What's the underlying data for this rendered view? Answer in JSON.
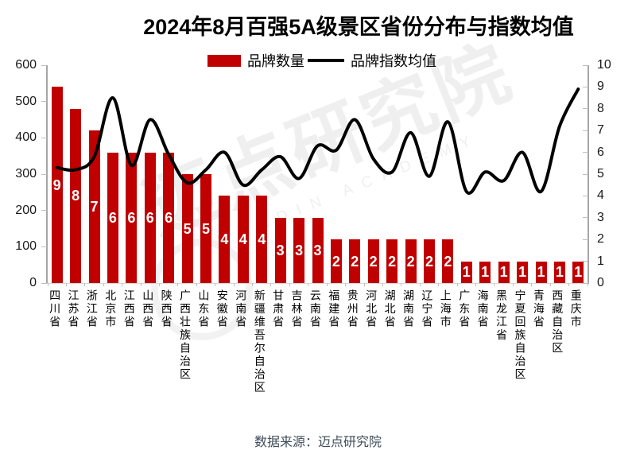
{
  "title": "2024年8月百强5A级景区省份分布与指数均值",
  "legend": {
    "bar_label": "品牌数量",
    "line_label": "品牌指数均值"
  },
  "source": "数据来源：迈点研究院",
  "watermark": {
    "text": "迈点研究院",
    "subtext": "MEADIN ACADEMY"
  },
  "colors": {
    "bar": "#C00000",
    "line": "#000000",
    "axis": "#A6A6A6",
    "tick": "#BFBFBF",
    "title_text": "#000000",
    "source_text": "#3E4C59"
  },
  "chart_data": {
    "type": "bar",
    "title": "2024年8月百强5A级景区省份分布与指数均值",
    "categories": [
      "四川省",
      "江苏省",
      "浙江省",
      "北京市",
      "江西省",
      "山西省",
      "陕西省",
      "广西壮族自治区",
      "山东省",
      "安徽省",
      "河南省",
      "新疆维吾尔自治区",
      "甘肃省",
      "吉林省",
      "云南省",
      "福建省",
      "贵州省",
      "河北省",
      "湖北省",
      "湖南省",
      "辽宁省",
      "上海市",
      "广东省",
      "海南省",
      "黑龙江省",
      "宁夏回族自治区",
      "青海省",
      "西藏自治区",
      "重庆市"
    ],
    "series": [
      {
        "name": "品牌数量",
        "type": "bar",
        "axis": "left",
        "values": [
          9,
          8,
          7,
          6,
          6,
          6,
          6,
          5,
          5,
          4,
          4,
          4,
          3,
          3,
          3,
          2,
          2,
          2,
          2,
          2,
          2,
          2,
          1,
          1,
          1,
          1,
          1,
          1,
          1
        ]
      },
      {
        "name": "品牌指数均值",
        "type": "line",
        "axis": "right",
        "values": [
          5.3,
          5.2,
          5.8,
          8.5,
          5.4,
          7.5,
          5.9,
          4.6,
          5.2,
          6.0,
          4.5,
          5.2,
          5.8,
          4.8,
          6.3,
          6.1,
          7.5,
          5.7,
          5.1,
          6.9,
          4.9,
          7.4,
          4.2,
          5.1,
          4.7,
          6.0,
          4.2,
          7.2,
          8.9
        ]
      }
    ],
    "left_axis": {
      "min": 0,
      "max": 600,
      "step": 100
    },
    "right_axis": {
      "min": 0,
      "max": 10,
      "step": 1
    },
    "bar_unit_multiplier": 60,
    "grid": false,
    "legend_position": "top",
    "bar_labels_shown": true,
    "bar_label_position": "center"
  }
}
